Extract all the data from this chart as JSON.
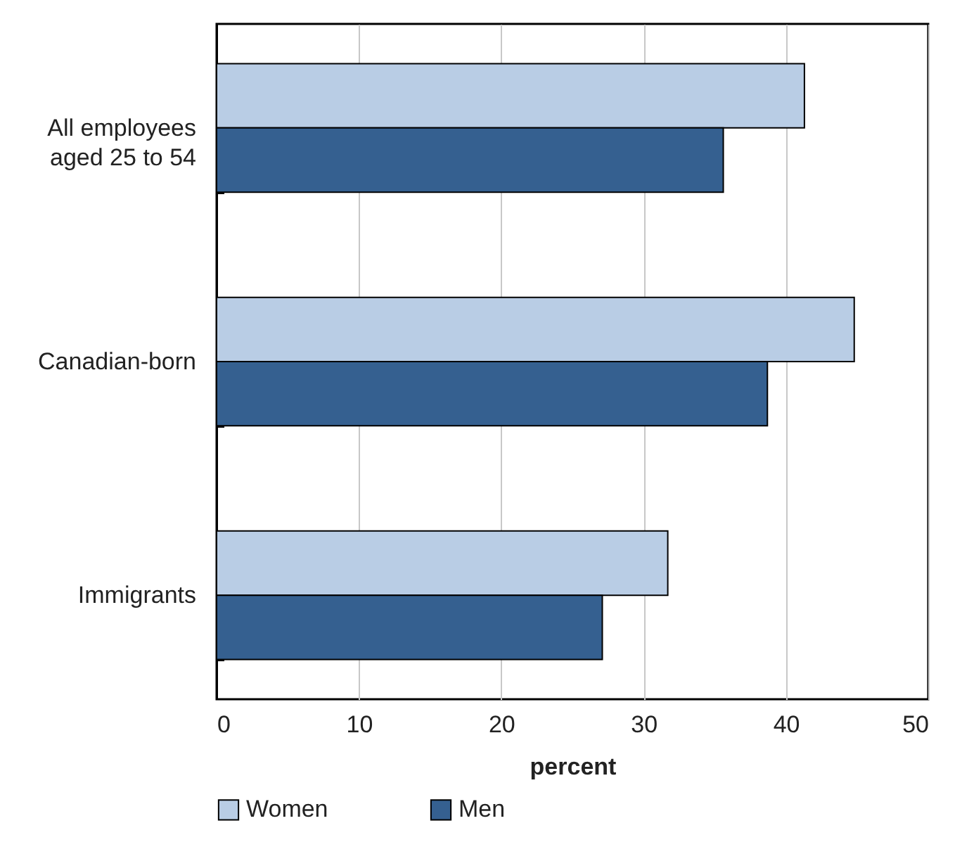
{
  "chart_data": {
    "type": "bar",
    "orientation": "horizontal",
    "xlabel": "percent",
    "categories": [
      "All employees aged 25 to 54",
      "Canadian-born",
      "Immigrants"
    ],
    "series": [
      {
        "name": "Women",
        "color": "#b9cde5",
        "values": [
          41.3,
          44.8,
          31.7
        ]
      },
      {
        "name": "Men",
        "color": "#356090",
        "values": [
          35.6,
          38.7,
          27.1
        ]
      }
    ],
    "xlim": [
      0,
      50
    ],
    "xticks": [
      0,
      10,
      20,
      30,
      40,
      50
    ],
    "grid": "x",
    "legend": "bottom"
  }
}
